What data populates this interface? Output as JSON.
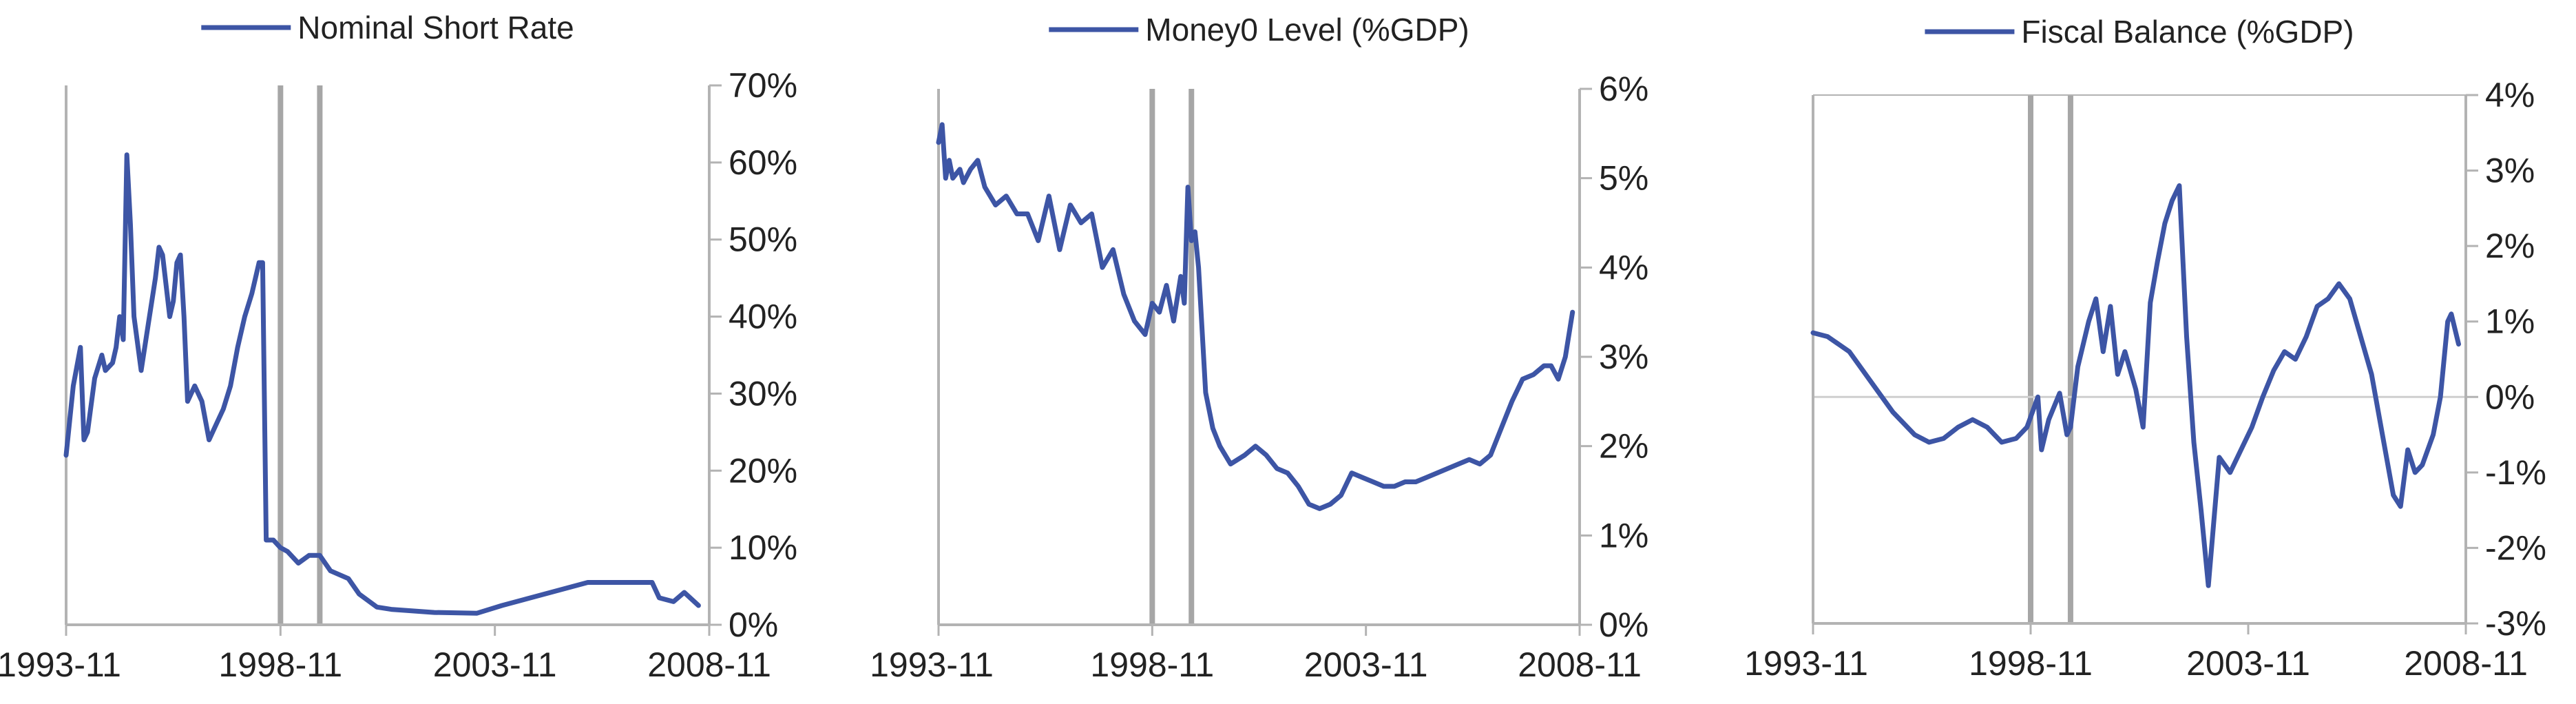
{
  "colors": {
    "series": "#3d55a5",
    "axis": "#b3b3b3",
    "band": "#a6a6a6",
    "zero_line": "#cfcfcf"
  },
  "chart_data": [
    {
      "type": "line",
      "title": "",
      "series": [
        {
          "name": "Nominal Short Rate"
        }
      ],
      "x_tick_labels": [
        "1993-11",
        "1998-11",
        "2003-11",
        "2008-11"
      ],
      "x_range": [
        "1993-11",
        "2008-11"
      ],
      "y_tick_labels": [
        "0%",
        "10%",
        "20%",
        "30%",
        "40%",
        "50%",
        "60%",
        "70%"
      ],
      "ylim": [
        0,
        70
      ],
      "y_axis_side": "right",
      "grid": false,
      "legend_position": "top-center",
      "vertical_markers": [
        "1998-11",
        "1999-10"
      ],
      "points": [
        [
          "1993-11",
          22
        ],
        [
          "1994-01",
          31
        ],
        [
          "1994-03",
          36
        ],
        [
          "1994-04",
          24
        ],
        [
          "1994-05",
          25
        ],
        [
          "1994-07",
          32
        ],
        [
          "1994-09",
          35
        ],
        [
          "1994-10",
          33
        ],
        [
          "1994-12",
          34
        ],
        [
          "1995-01",
          36
        ],
        [
          "1995-02",
          40
        ],
        [
          "1995-03",
          37
        ],
        [
          "1995-04",
          61
        ],
        [
          "1995-05",
          52
        ],
        [
          "1995-06",
          40
        ],
        [
          "1995-08",
          33
        ],
        [
          "1995-10",
          39
        ],
        [
          "1995-12",
          45
        ],
        [
          "1996-01",
          49
        ],
        [
          "1996-02",
          48
        ],
        [
          "1996-04",
          40
        ],
        [
          "1996-05",
          42
        ],
        [
          "1996-06",
          47
        ],
        [
          "1996-07",
          48
        ],
        [
          "1996-08",
          40
        ],
        [
          "1996-09",
          29
        ],
        [
          "1996-11",
          31
        ],
        [
          "1997-01",
          29
        ],
        [
          "1997-03",
          24
        ],
        [
          "1997-05",
          26
        ],
        [
          "1997-07",
          28
        ],
        [
          "1997-09",
          31
        ],
        [
          "1997-11",
          36
        ],
        [
          "1998-01",
          40
        ],
        [
          "1998-03",
          43
        ],
        [
          "1998-05",
          47
        ],
        [
          "1998-06",
          47
        ],
        [
          "1998-07",
          11
        ],
        [
          "1998-09",
          11
        ],
        [
          "1998-11",
          10
        ],
        [
          "1999-01",
          9.5
        ],
        [
          "1999-04",
          8
        ],
        [
          "1999-07",
          9
        ],
        [
          "1999-10",
          9
        ],
        [
          "2000-01",
          7
        ],
        [
          "2000-06",
          6
        ],
        [
          "2000-09",
          4
        ],
        [
          "2001-02",
          2.3
        ],
        [
          "2001-06",
          2
        ],
        [
          "2002-06",
          1.6
        ],
        [
          "2003-06",
          1.5
        ],
        [
          "2004-01",
          2.5
        ],
        [
          "2005-01",
          4
        ],
        [
          "2006-01",
          5.5
        ],
        [
          "2007-07",
          5.5
        ],
        [
          "2007-09",
          3.5
        ],
        [
          "2008-01",
          3
        ],
        [
          "2008-04",
          4.2
        ],
        [
          "2008-08",
          2.5
        ]
      ]
    },
    {
      "type": "line",
      "title": "",
      "series": [
        {
          "name": "Money0 Level (%GDP)"
        }
      ],
      "x_tick_labels": [
        "1993-11",
        "1998-11",
        "2003-11",
        "2008-11"
      ],
      "x_range": [
        "1993-11",
        "2008-11"
      ],
      "y_tick_labels": [
        "0%",
        "1%",
        "2%",
        "3%",
        "4%",
        "5%",
        "6%"
      ],
      "ylim": [
        0,
        6
      ],
      "y_axis_side": "right",
      "grid": false,
      "legend_position": "top-center",
      "vertical_markers": [
        "1998-11",
        "1999-10"
      ],
      "points": [
        [
          "1993-11",
          5.4
        ],
        [
          "1993-12",
          5.6
        ],
        [
          "1994-01",
          5.0
        ],
        [
          "1994-02",
          5.2
        ],
        [
          "1994-03",
          5.0
        ],
        [
          "1994-05",
          5.1
        ],
        [
          "1994-06",
          4.95
        ],
        [
          "1994-08",
          5.1
        ],
        [
          "1994-10",
          5.2
        ],
        [
          "1994-12",
          4.9
        ],
        [
          "1995-03",
          4.7
        ],
        [
          "1995-06",
          4.8
        ],
        [
          "1995-09",
          4.6
        ],
        [
          "1995-12",
          4.6
        ],
        [
          "1996-03",
          4.3
        ],
        [
          "1996-06",
          4.8
        ],
        [
          "1996-09",
          4.2
        ],
        [
          "1996-12",
          4.7
        ],
        [
          "1997-03",
          4.5
        ],
        [
          "1997-06",
          4.6
        ],
        [
          "1997-09",
          4.0
        ],
        [
          "1997-12",
          4.2
        ],
        [
          "1998-03",
          3.7
        ],
        [
          "1998-06",
          3.4
        ],
        [
          "1998-09",
          3.25
        ],
        [
          "1998-11",
          3.6
        ],
        [
          "1999-01",
          3.5
        ],
        [
          "1999-03",
          3.8
        ],
        [
          "1999-05",
          3.4
        ],
        [
          "1999-07",
          3.9
        ],
        [
          "1999-08",
          3.6
        ],
        [
          "1999-09",
          4.9
        ],
        [
          "1999-10",
          4.3
        ],
        [
          "1999-11",
          4.4
        ],
        [
          "1999-12",
          4.0
        ],
        [
          "2000-02",
          2.6
        ],
        [
          "2000-04",
          2.2
        ],
        [
          "2000-06",
          2.0
        ],
        [
          "2000-09",
          1.8
        ],
        [
          "2001-01",
          1.9
        ],
        [
          "2001-04",
          2.0
        ],
        [
          "2001-07",
          1.9
        ],
        [
          "2001-10",
          1.75
        ],
        [
          "2002-01",
          1.7
        ],
        [
          "2002-04",
          1.55
        ],
        [
          "2002-07",
          1.35
        ],
        [
          "2002-10",
          1.3
        ],
        [
          "2003-01",
          1.35
        ],
        [
          "2003-04",
          1.45
        ],
        [
          "2003-07",
          1.7
        ],
        [
          "2003-10",
          1.65
        ],
        [
          "2004-01",
          1.6
        ],
        [
          "2004-04",
          1.55
        ],
        [
          "2004-07",
          1.55
        ],
        [
          "2004-10",
          1.6
        ],
        [
          "2005-01",
          1.6
        ],
        [
          "2005-04",
          1.65
        ],
        [
          "2005-07",
          1.7
        ],
        [
          "2005-10",
          1.75
        ],
        [
          "2006-01",
          1.8
        ],
        [
          "2006-04",
          1.85
        ],
        [
          "2006-07",
          1.8
        ],
        [
          "2006-10",
          1.9
        ],
        [
          "2007-01",
          2.2
        ],
        [
          "2007-04",
          2.5
        ],
        [
          "2007-07",
          2.75
        ],
        [
          "2007-10",
          2.8
        ],
        [
          "2008-01",
          2.9
        ],
        [
          "2008-03",
          2.9
        ],
        [
          "2008-05",
          2.75
        ],
        [
          "2008-07",
          3.0
        ],
        [
          "2008-09",
          3.5
        ]
      ]
    },
    {
      "type": "line",
      "title": "",
      "series": [
        {
          "name": "Fiscal Balance (%GDP)"
        }
      ],
      "x_tick_labels": [
        "1993-11",
        "1998-11",
        "2003-11",
        "2008-11"
      ],
      "x_range": [
        "1993-11",
        "2008-11"
      ],
      "y_tick_labels": [
        "-3%",
        "-2%",
        "-1%",
        "0%",
        "1%",
        "2%",
        "3%",
        "4%"
      ],
      "ylim": [
        -3,
        4
      ],
      "y_axis_side": "right",
      "grid": false,
      "zero_line": true,
      "legend_position": "top-center",
      "vertical_markers": [
        "1998-11",
        "1999-10"
      ],
      "points": [
        [
          "1993-11",
          0.85
        ],
        [
          "1994-03",
          0.8
        ],
        [
          "1994-09",
          0.6
        ],
        [
          "1995-03",
          0.2
        ],
        [
          "1995-09",
          -0.2
        ],
        [
          "1996-03",
          -0.5
        ],
        [
          "1996-07",
          -0.6
        ],
        [
          "1996-11",
          -0.55
        ],
        [
          "1997-03",
          -0.4
        ],
        [
          "1997-07",
          -0.3
        ],
        [
          "1997-11",
          -0.4
        ],
        [
          "1998-03",
          -0.6
        ],
        [
          "1998-07",
          -0.55
        ],
        [
          "1998-10",
          -0.4
        ],
        [
          "1999-01",
          0.0
        ],
        [
          "1999-02",
          -0.7
        ],
        [
          "1999-04",
          -0.3
        ],
        [
          "1999-07",
          0.05
        ],
        [
          "1999-09",
          -0.5
        ],
        [
          "1999-10",
          -0.4
        ],
        [
          "1999-12",
          0.4
        ],
        [
          "2000-03",
          1.0
        ],
        [
          "2000-05",
          1.3
        ],
        [
          "2000-07",
          0.6
        ],
        [
          "2000-09",
          1.2
        ],
        [
          "2000-11",
          0.3
        ],
        [
          "2001-01",
          0.6
        ],
        [
          "2001-04",
          0.1
        ],
        [
          "2001-06",
          -0.4
        ],
        [
          "2001-08",
          1.25
        ],
        [
          "2001-10",
          1.8
        ],
        [
          "2001-12",
          2.3
        ],
        [
          "2002-02",
          2.6
        ],
        [
          "2002-04",
          2.8
        ],
        [
          "2002-06",
          0.8
        ],
        [
          "2002-08",
          -0.6
        ],
        [
          "2002-10",
          -1.5
        ],
        [
          "2002-12",
          -2.5
        ],
        [
          "2003-03",
          -0.8
        ],
        [
          "2003-06",
          -1.0
        ],
        [
          "2003-09",
          -0.7
        ],
        [
          "2003-12",
          -0.4
        ],
        [
          "2004-03",
          0.0
        ],
        [
          "2004-06",
          0.35
        ],
        [
          "2004-09",
          0.6
        ],
        [
          "2004-12",
          0.5
        ],
        [
          "2005-03",
          0.8
        ],
        [
          "2005-06",
          1.2
        ],
        [
          "2005-09",
          1.3
        ],
        [
          "2005-12",
          1.5
        ],
        [
          "2006-03",
          1.3
        ],
        [
          "2006-06",
          0.8
        ],
        [
          "2006-09",
          0.3
        ],
        [
          "2006-12",
          -0.5
        ],
        [
          "2007-03",
          -1.3
        ],
        [
          "2007-05",
          -1.45
        ],
        [
          "2007-07",
          -0.7
        ],
        [
          "2007-09",
          -1.0
        ],
        [
          "2007-11",
          -0.9
        ],
        [
          "2008-02",
          -0.5
        ],
        [
          "2008-04",
          0.0
        ],
        [
          "2008-06",
          1.0
        ],
        [
          "2008-07",
          1.1
        ],
        [
          "2008-09",
          0.7
        ]
      ]
    }
  ]
}
